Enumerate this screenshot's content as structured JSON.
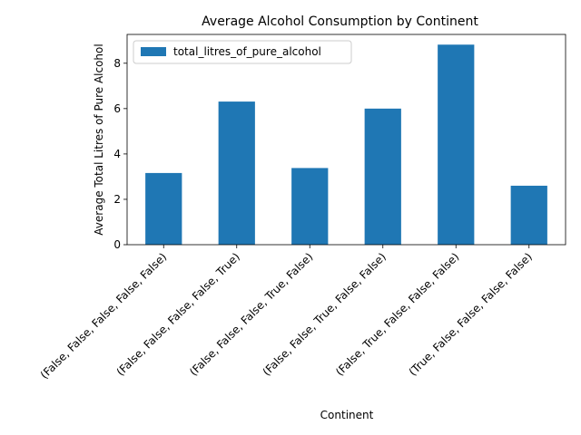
{
  "chart_data": {
    "type": "bar",
    "title": "Average Alcohol Consumption by Continent",
    "xlabel": "Continent",
    "ylabel": "Average Total Litres of Pure Alcohol",
    "categories": [
      "(False, False, False, False, False)",
      "(False, False, False, False, True)",
      "(False, False, False, True, False)",
      "(False, False, True, False, False)",
      "(False, True, False, False, False)",
      "(True, False, False, False, False)"
    ],
    "series": [
      {
        "name": "total_litres_of_pure_alcohol",
        "values": [
          3.16,
          6.31,
          3.38,
          6.0,
          8.82,
          2.6
        ]
      }
    ],
    "ylim": [
      0,
      9.27
    ],
    "yticks": [
      0,
      2,
      4,
      6,
      8
    ],
    "grid": false,
    "legend_position": "top-left",
    "bar_color": "#1f77b4"
  }
}
